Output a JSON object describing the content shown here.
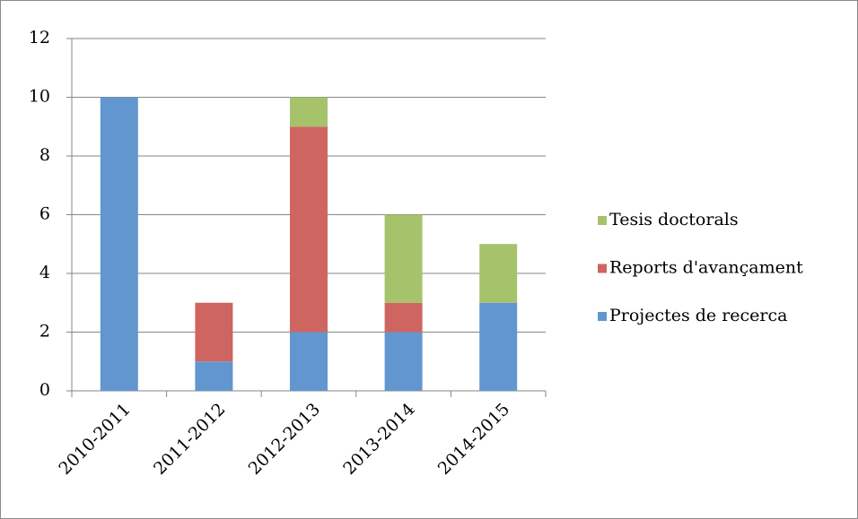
{
  "chart_data": {
    "type": "stacked_bar",
    "categories": [
      "2010-2011",
      "2011-2012",
      "2012-2013",
      "2013-2014",
      "2014-2015"
    ],
    "series": [
      {
        "name": "Projectes de recerca",
        "color": "#6296cf",
        "values": [
          10,
          1,
          2,
          2,
          3
        ]
      },
      {
        "name": "Reports d'avançament",
        "color": "#cf6560",
        "values": [
          0,
          2,
          7,
          1,
          0
        ]
      },
      {
        "name": "Tesis doctorals",
        "color": "#a6c36c",
        "values": [
          0,
          0,
          1,
          3,
          2
        ]
      }
    ],
    "ylim": [
      0,
      12
    ],
    "yticks": [
      0,
      2,
      4,
      6,
      8,
      10,
      12
    ],
    "grid": true,
    "legend": "right"
  }
}
